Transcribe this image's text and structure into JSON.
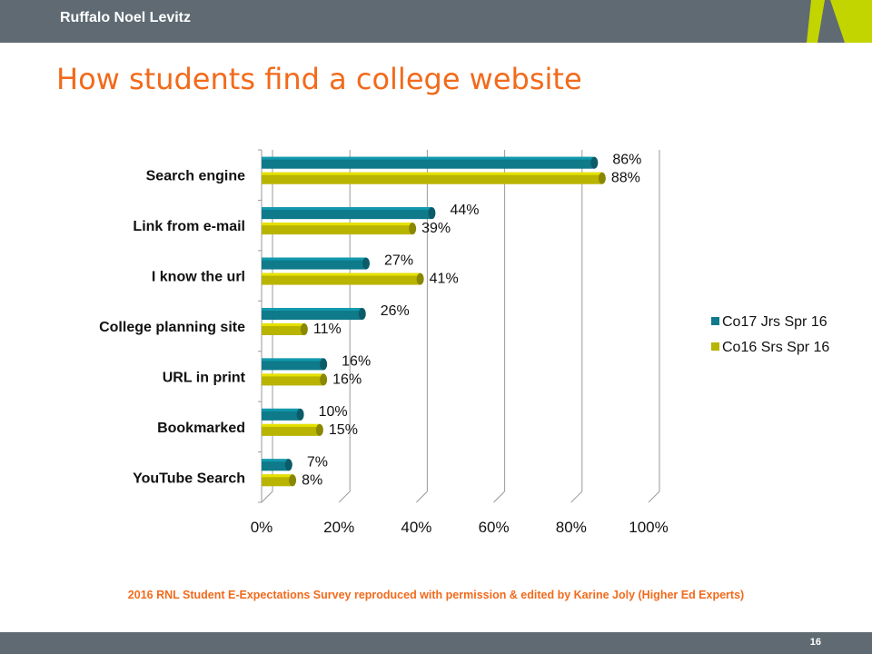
{
  "header": {
    "brand": "Ruffalo Noel Levitz"
  },
  "slide": {
    "title": "How students find a college website",
    "source_note": "2016 RNL Student E-Expectations Survey reproduced with permission & edited by Karine Joly (Higher Ed Experts)",
    "page_number": "16"
  },
  "colors": {
    "accent": "#f26a1b",
    "bar_gray": "#5f6a72",
    "logo_green": "#c3d500"
  },
  "chart_data": {
    "type": "bar",
    "orientation": "horizontal",
    "categories": [
      "Search engine",
      "Link from e-mail",
      "I know the url",
      "College planning site",
      "URL in print",
      "Bookmarked",
      "YouTube Search"
    ],
    "series": [
      {
        "name": "Co17 Jrs Spr 16",
        "color": "#0e7a8a",
        "values": [
          86,
          44,
          27,
          26,
          16,
          10,
          7
        ],
        "labels": [
          "86%",
          "44%",
          "27%",
          "26%",
          "16%",
          "10%",
          "7%"
        ]
      },
      {
        "name": "Co16 Srs Spr 16",
        "color": "#b8b400",
        "values": [
          88,
          39,
          41,
          11,
          16,
          15,
          8
        ],
        "labels": [
          "88%",
          "39%",
          "41%",
          "11%",
          "16%",
          "15%",
          "8%"
        ]
      }
    ],
    "xticks": [
      "0%",
      "20%",
      "40%",
      "60%",
      "80%",
      "100%"
    ],
    "xlim": [
      0,
      100
    ],
    "grid": true,
    "legend_position": "right"
  }
}
